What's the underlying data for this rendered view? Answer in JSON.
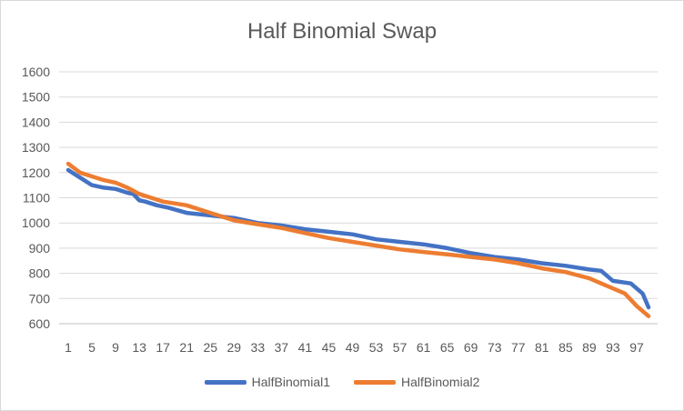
{
  "chart_data": {
    "type": "line",
    "title": "Half Binomial Swap",
    "xlabel": "",
    "ylabel": "",
    "ylim": [
      600,
      1600
    ],
    "yticks": [
      600,
      700,
      800,
      900,
      1000,
      1100,
      1200,
      1300,
      1400,
      1500,
      1600
    ],
    "xlim": [
      1,
      99
    ],
    "xtick_labels": [
      "1",
      "5",
      "9",
      "13",
      "17",
      "21",
      "25",
      "29",
      "33",
      "37",
      "41",
      "45",
      "49",
      "53",
      "57",
      "61",
      "65",
      "69",
      "73",
      "77",
      "81",
      "85",
      "89",
      "93",
      "97"
    ],
    "grid": true,
    "legend_position": "bottom",
    "series": [
      {
        "name": "HalfBinomial1",
        "color": "#4472C4",
        "x": [
          1,
          3,
          5,
          7,
          9,
          11,
          12,
          13,
          14,
          16,
          18,
          21,
          25,
          29,
          33,
          37,
          41,
          45,
          49,
          53,
          57,
          61,
          65,
          69,
          73,
          77,
          81,
          85,
          89,
          91,
          93,
          96,
          98,
          99
        ],
        "values": [
          1210,
          1180,
          1150,
          1140,
          1135,
          1120,
          1115,
          1090,
          1085,
          1070,
          1060,
          1040,
          1030,
          1020,
          1000,
          990,
          975,
          965,
          955,
          935,
          925,
          915,
          900,
          880,
          865,
          855,
          840,
          830,
          815,
          810,
          770,
          760,
          720,
          665
        ]
      },
      {
        "name": "HalfBinomial2",
        "color": "#ED7D31",
        "x": [
          1,
          3,
          5,
          7,
          9,
          11,
          13,
          15,
          17,
          21,
          25,
          29,
          33,
          37,
          41,
          45,
          49,
          53,
          57,
          61,
          65,
          69,
          73,
          77,
          81,
          85,
          89,
          91,
          93,
          95,
          97,
          99
        ],
        "values": [
          1235,
          1200,
          1185,
          1170,
          1160,
          1140,
          1115,
          1100,
          1085,
          1070,
          1040,
          1010,
          995,
          980,
          960,
          940,
          925,
          910,
          895,
          885,
          875,
          865,
          855,
          840,
          820,
          805,
          780,
          760,
          740,
          720,
          670,
          630
        ]
      }
    ]
  }
}
